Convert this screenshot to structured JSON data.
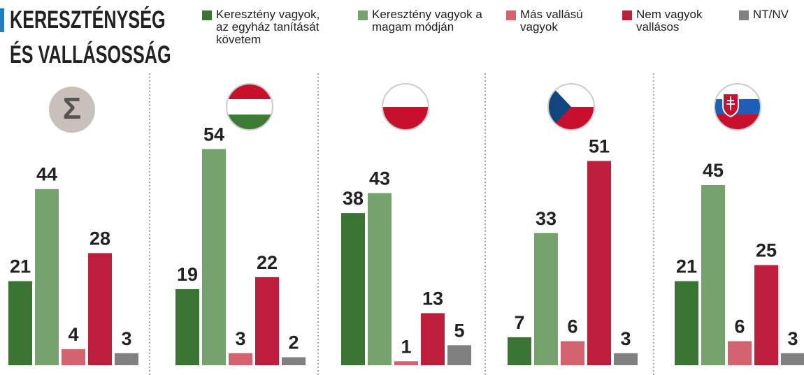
{
  "chart_data": {
    "type": "bar",
    "title": "KERESZTÉNYSÉG ÉS VALLÁSOSSÁG",
    "categories": [
      "Σ",
      null,
      null,
      null,
      null
    ],
    "series": [
      {
        "name": "Keresztény vagyok, az egyház tanítását követem",
        "color": "#3a7533",
        "values": [
          21,
          19,
          38,
          7,
          21
        ]
      },
      {
        "name": "Keresztény vagyok a magam módján",
        "color": "#76a36d",
        "values": [
          44,
          54,
          43,
          33,
          45
        ]
      },
      {
        "name": "Más vallású vagyok",
        "color": "#d4636f",
        "values": [
          4,
          3,
          1,
          6,
          6
        ]
      },
      {
        "name": "Nem vagyok vallásos",
        "color": "#be1e3c",
        "values": [
          28,
          22,
          13,
          51,
          25
        ]
      },
      {
        "name": "NT/NV",
        "color": "#808080",
        "values": [
          3,
          2,
          5,
          3,
          3
        ]
      }
    ],
    "ylim": [
      0,
      60
    ]
  }
}
